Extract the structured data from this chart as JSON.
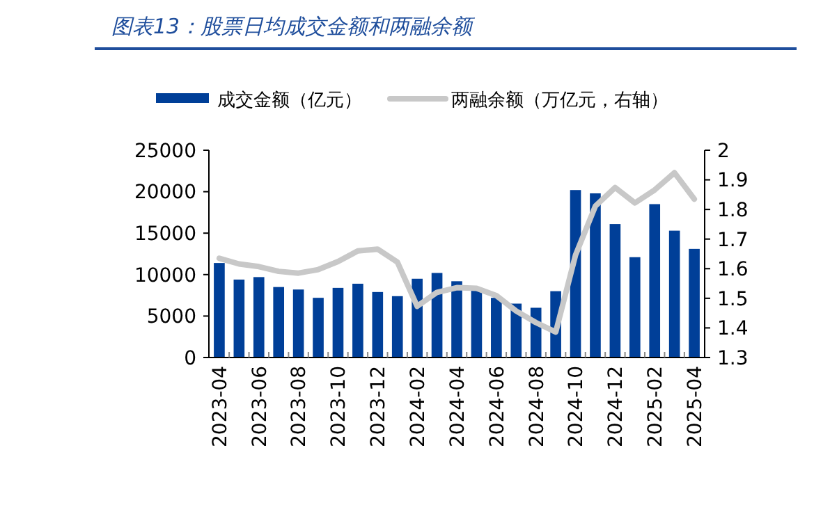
{
  "chart_data": {
    "type": "bar",
    "title": "图表13：股票日均成交金额和两融余额",
    "categories": [
      "2023-04",
      null,
      "2023-06",
      null,
      "2023-08",
      null,
      "2023-10",
      null,
      "2023-12",
      null,
      "2024-02",
      null,
      "2024-04",
      null,
      "2024-06",
      null,
      "2024-08",
      null,
      "2024-10",
      null,
      "2024-12",
      null,
      "2025-02",
      null,
      "2025-04"
    ],
    "series": [
      {
        "name": "成交金额（亿元）",
        "color": "#003f98",
        "values": [
          11400,
          9400,
          9700,
          8500,
          8200,
          7200,
          8400,
          8900,
          7900,
          7400,
          9500,
          10200,
          9200,
          8200,
          7200,
          6500,
          6000,
          8000,
          20200,
          19800,
          16100,
          12100,
          18500,
          15300,
          13100
        ]
      },
      {
        "name": "两融余额（万亿元，右轴）",
        "type": "line",
        "axis": "y2",
        "color": "#c8c8c8",
        "values": [
          1.635,
          1.616,
          1.607,
          1.591,
          1.585,
          1.597,
          1.624,
          1.66,
          1.666,
          1.622,
          1.473,
          1.52,
          1.536,
          1.534,
          1.509,
          1.457,
          1.418,
          1.386,
          1.646,
          1.811,
          1.874,
          1.822,
          1.866,
          1.924,
          1.835
        ]
      }
    ],
    "ylim": [
      0,
      25000
    ],
    "yticks": [
      0,
      5000,
      10000,
      15000,
      20000,
      25000
    ],
    "y2lim": [
      1.3,
      2
    ],
    "y2ticks": [
      {
        "value": 1.3,
        "label": "1.3"
      },
      {
        "value": 1.4,
        "label": "1.4"
      },
      {
        "value": 1.5,
        "label": "1.5"
      },
      {
        "value": 1.6,
        "label": "1.6"
      },
      {
        "value": 1.7,
        "label": "1.7"
      },
      {
        "value": 1.8,
        "label": "1.8"
      },
      {
        "value": 1.9,
        "label": "1.9"
      },
      {
        "value": 2,
        "label": "2"
      }
    ],
    "legend": "top",
    "grid": false
  }
}
